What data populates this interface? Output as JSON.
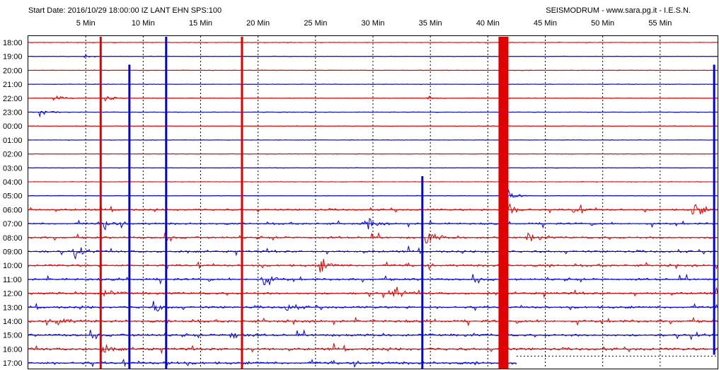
{
  "header": {
    "left": "Start Date: 2016/10/29 18:00:00 IZ LANT EHN SPS:100",
    "right": "SEISMODRUM - www.sara.pg.it - I.E.S.N."
  },
  "chart_data": {
    "type": "line",
    "x_tick_labels": [
      "5 Min",
      "10 Min",
      "15 Min",
      "20 Min",
      "25 Min",
      "30 Min",
      "35 Min",
      "40 Min",
      "45 Min",
      "50 Min",
      "55 Min"
    ],
    "x_ticks_min": [
      5,
      10,
      15,
      20,
      25,
      30,
      35,
      40,
      45,
      50,
      55
    ],
    "xlim_min": [
      0,
      60
    ],
    "row_labels": [
      "18:00",
      "19:00",
      "20:00",
      "21:00",
      "22:00",
      "23:00",
      "00:00",
      "01:00",
      "02:00",
      "03:00",
      "04:00",
      "05:00",
      "06:00",
      "07:00",
      "08:00",
      "09:00",
      "10:00",
      "11:00",
      "12:00",
      "13:00",
      "14:00",
      "15:00",
      "16:00",
      "17:00"
    ],
    "row_colors": [
      "#e00000",
      "#0000e0"
    ],
    "grid": "dashed vertical at 5-minute intervals",
    "events": [
      {
        "row": 1,
        "minute": 5.0,
        "amp": 0.6
      },
      {
        "row": 4,
        "minute": 2.4,
        "amp": 1.4
      },
      {
        "row": 4,
        "minute": 6.8,
        "amp": 1.6
      },
      {
        "row": 4,
        "minute": 34.9,
        "amp": 0.8
      },
      {
        "row": 5,
        "minute": 1.2,
        "amp": 1.2
      },
      {
        "row": 11,
        "minute": 41.5,
        "amp": 6.0
      },
      {
        "row": 12,
        "minute": 41.5,
        "amp": 8.0
      },
      {
        "row": 12,
        "minute": 47.5,
        "amp": 2.5
      },
      {
        "row": 12,
        "minute": 58.0,
        "amp": 4.0
      },
      {
        "row": 13,
        "minute": 6.5,
        "amp": 3.0
      },
      {
        "row": 13,
        "minute": 29.5,
        "amp": 3.0
      },
      {
        "row": 14,
        "minute": 34.8,
        "amp": 3.5
      },
      {
        "row": 14,
        "minute": 43.5,
        "amp": 2.5
      },
      {
        "row": 15,
        "minute": 4.0,
        "amp": 2.5
      },
      {
        "row": 16,
        "minute": 25.5,
        "amp": 3.0
      },
      {
        "row": 17,
        "minute": 20.5,
        "amp": 3.5
      },
      {
        "row": 18,
        "minute": 6.5,
        "amp": 2.5
      },
      {
        "row": 18,
        "minute": 31.8,
        "amp": 3.0
      },
      {
        "row": 19,
        "minute": 11.0,
        "amp": 2.5
      },
      {
        "row": 19,
        "minute": 22.5,
        "amp": 2.0
      },
      {
        "row": 20,
        "minute": 2.5,
        "amp": 2.5
      },
      {
        "row": 21,
        "minute": 17.8,
        "amp": 2.0
      },
      {
        "row": 22,
        "minute": 6.5,
        "amp": 2.0
      },
      {
        "row": 23,
        "minute": 12.2,
        "amp": 1.5
      }
    ],
    "spikes": [
      {
        "minute": 6.3,
        "from_row": 0,
        "to_row": 23,
        "color": "#e00000"
      },
      {
        "minute": 8.8,
        "from_row": 2,
        "to_row": 23,
        "color": "#0000e0"
      },
      {
        "minute": 12.0,
        "from_row": 0,
        "to_row": 23,
        "color": "#0000e0"
      },
      {
        "minute": 18.6,
        "from_row": 0,
        "to_row": 23,
        "color": "#e00000"
      },
      {
        "minute": 34.3,
        "from_row": 10,
        "to_row": 23,
        "color": "#0000e0"
      },
      {
        "minute": 41.3,
        "from_row": 0,
        "to_row": 23,
        "color": "#e00000",
        "wide": true
      },
      {
        "minute": 59.7,
        "from_row": 2,
        "to_row": 22,
        "color": "#0000e0"
      }
    ],
    "trailing_end_minute": 42.5,
    "dashed_tail_row": 22
  }
}
